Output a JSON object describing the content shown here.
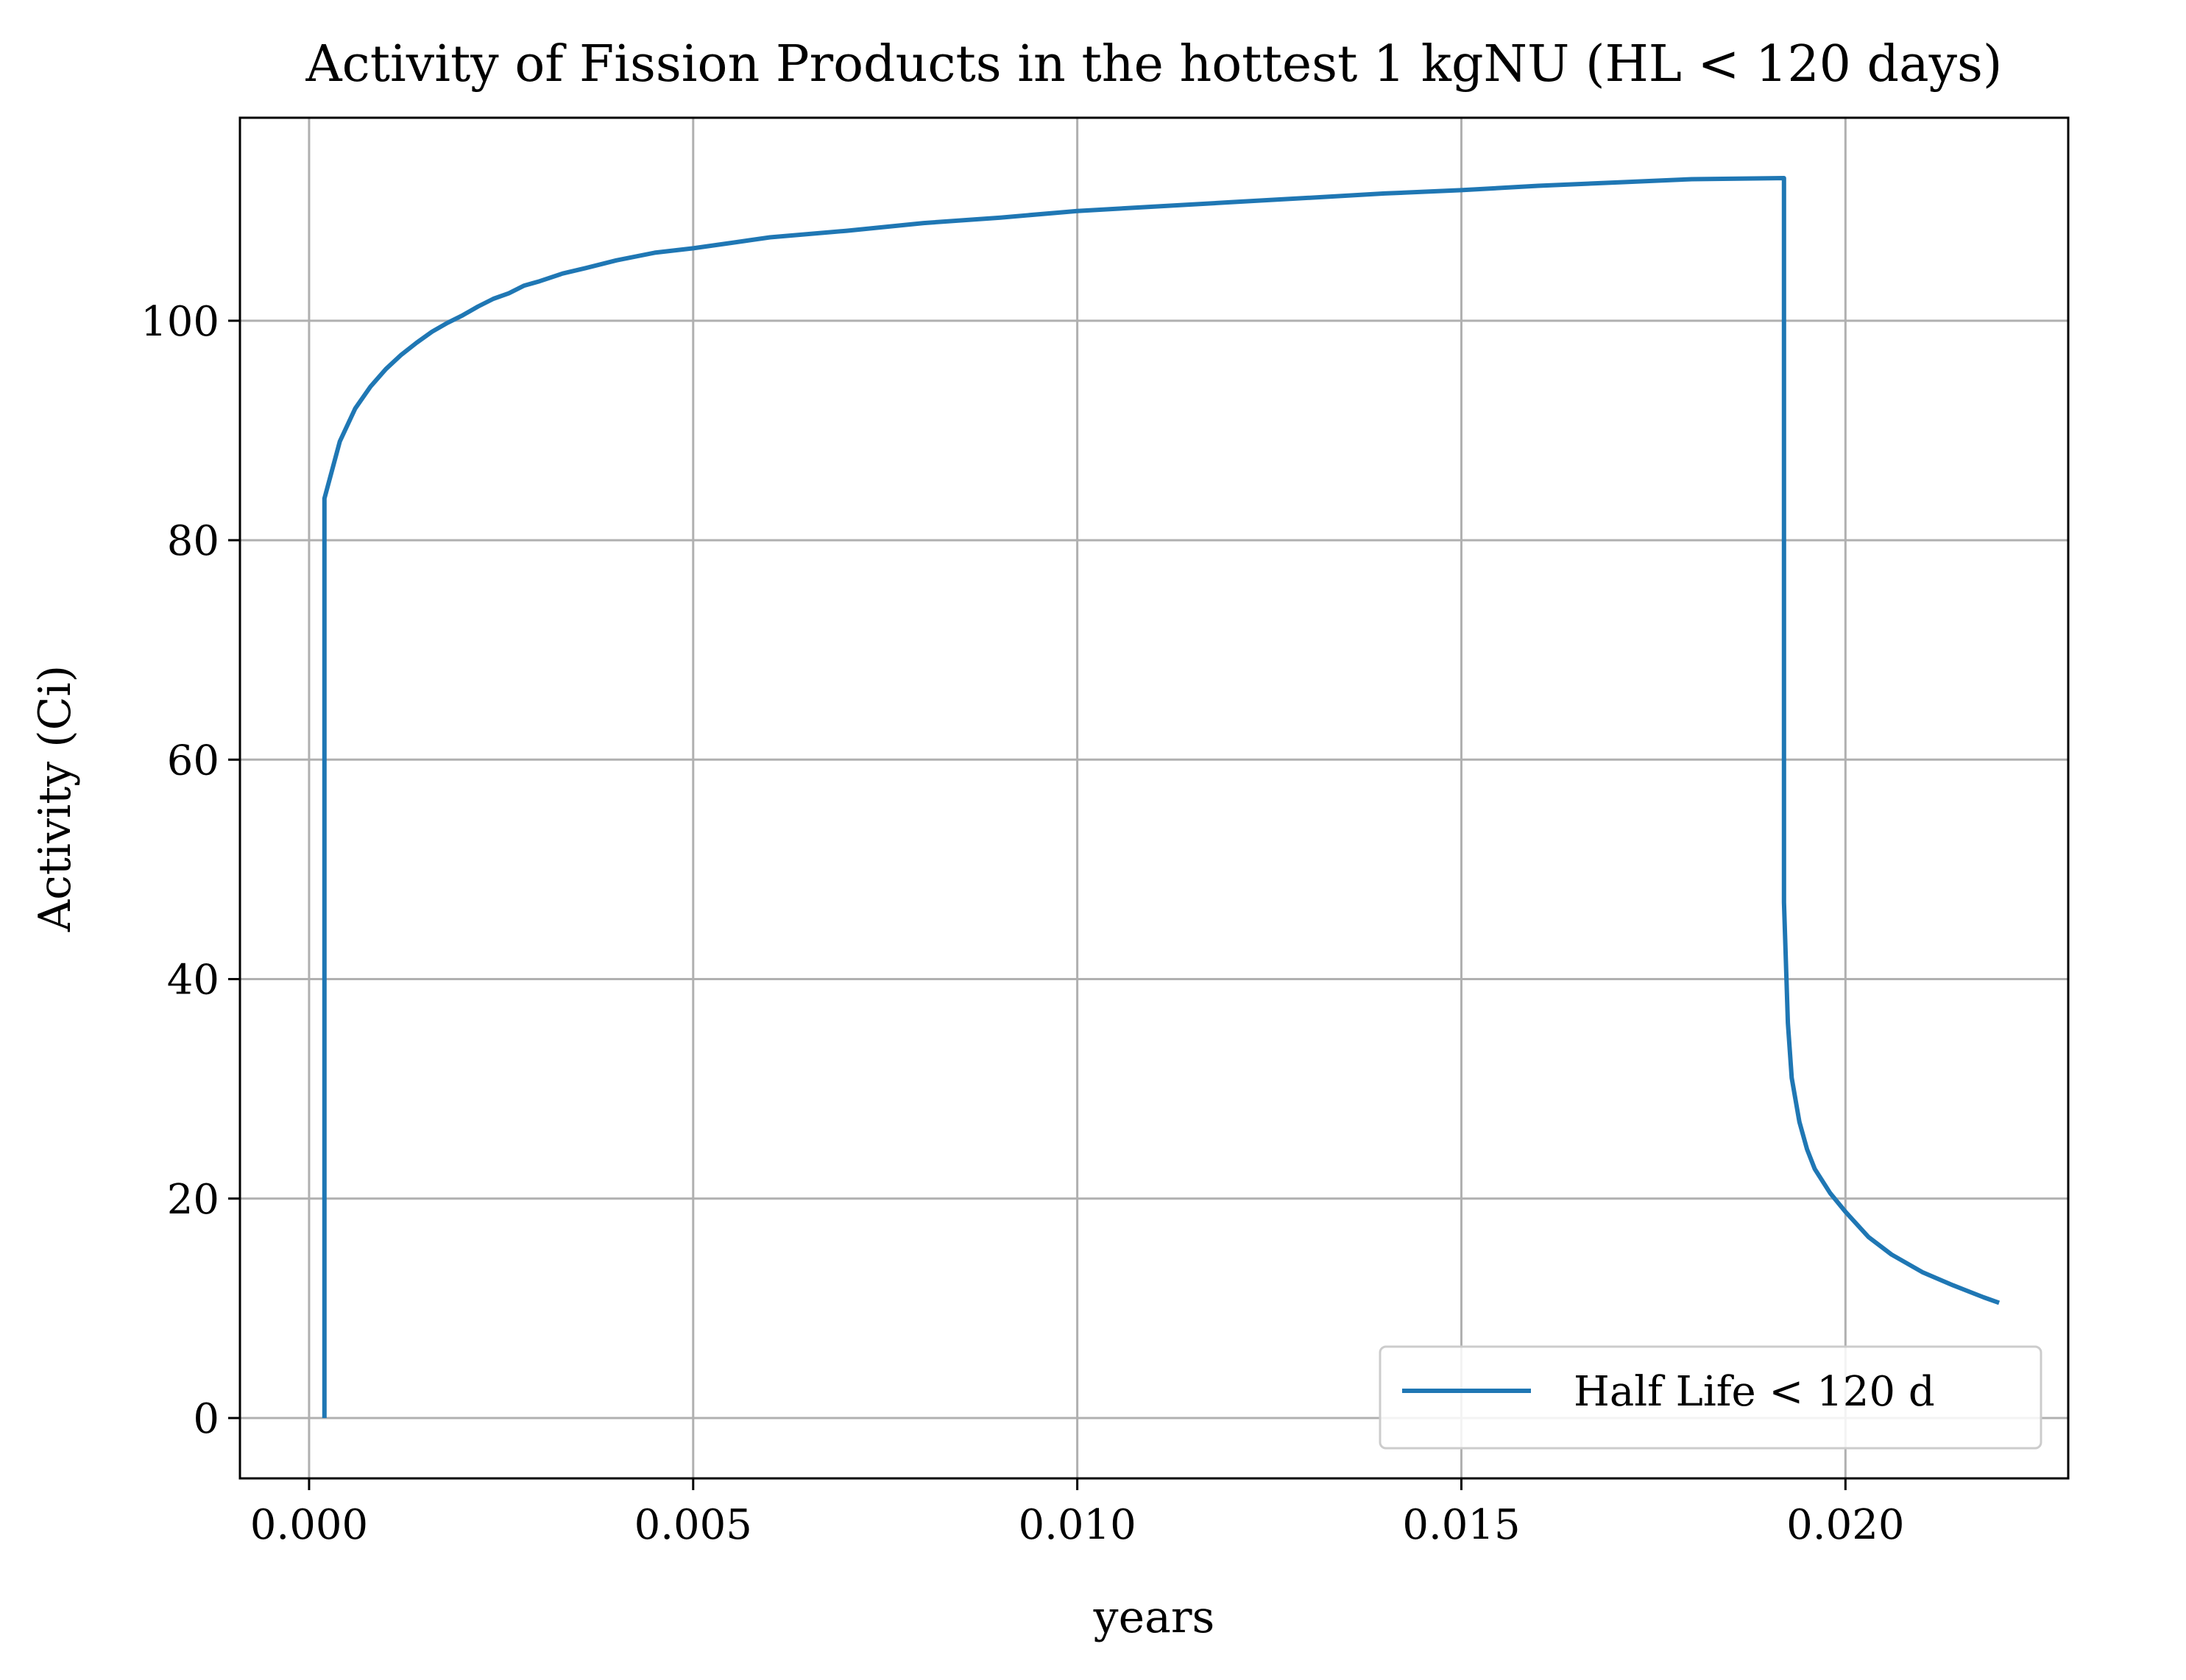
{
  "chart_data": {
    "type": "line",
    "title": "Activity of Fission Products in the hottest 1 kgNU (HL < 120 days)",
    "xlabel": "years",
    "ylabel": "Activity (Ci)",
    "xlim": [
      -0.0009,
      0.0229
    ],
    "ylim": [
      -5.5,
      118.5
    ],
    "xticks": [
      0.0,
      0.005,
      0.01,
      0.015,
      0.02
    ],
    "xtick_labels": [
      "0.000",
      "0.005",
      "0.010",
      "0.015",
      "0.020"
    ],
    "yticks": [
      0,
      20,
      40,
      60,
      80,
      100
    ],
    "ytick_labels": [
      "0",
      "20",
      "40",
      "60",
      "80",
      "100"
    ],
    "grid": true,
    "legend_position": "lower-right",
    "series": [
      {
        "name": "Half Life < 120 d",
        "color": "#1f77b4",
        "x": [
          0.0002,
          0.0002,
          0.0004,
          0.0006,
          0.0008,
          0.001,
          0.0012,
          0.0014,
          0.0016,
          0.0018,
          0.002,
          0.0022,
          0.0024,
          0.0026,
          0.0028,
          0.003,
          0.0033,
          0.0036,
          0.004,
          0.0045,
          0.005,
          0.0055,
          0.006,
          0.007,
          0.008,
          0.009,
          0.01,
          0.011,
          0.012,
          0.013,
          0.014,
          0.015,
          0.016,
          0.017,
          0.018,
          0.0192,
          0.0192,
          0.01925,
          0.0193,
          0.0194,
          0.0195,
          0.0196,
          0.0198,
          0.02,
          0.0203,
          0.0206,
          0.021,
          0.0214,
          0.0218,
          0.022
        ],
        "y": [
          0,
          83.8,
          89,
          92,
          94,
          95.6,
          96.9,
          98,
          99,
          99.8,
          100.5,
          101.3,
          102,
          102.5,
          103.2,
          103.6,
          104.3,
          104.8,
          105.5,
          106.2,
          106.6,
          107.1,
          107.6,
          108.2,
          108.9,
          109.4,
          110.0,
          110.4,
          110.8,
          111.2,
          111.6,
          111.9,
          112.3,
          112.6,
          112.9,
          113.0,
          47,
          36,
          31,
          27,
          24.5,
          22.7,
          20.5,
          18.8,
          16.5,
          14.9,
          13.3,
          12.1,
          11.0,
          10.5
        ]
      }
    ]
  }
}
